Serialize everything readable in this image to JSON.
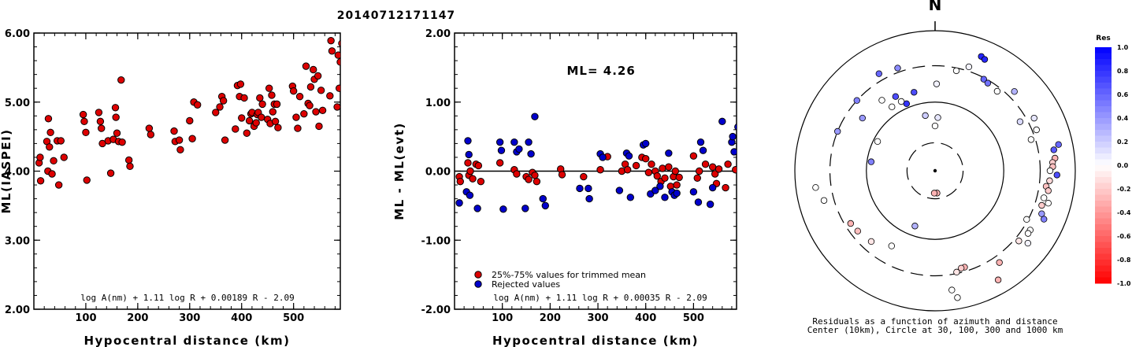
{
  "title": "20140712171147",
  "chart_data": [
    {
      "type": "scatter",
      "ylabel": "ML(IASPEI)",
      "xlabel": "Hypocentral distance (km)",
      "xlim": [
        0,
        590
      ],
      "ylim": [
        2.0,
        6.0
      ],
      "xticks": [
        "100",
        "200",
        "300",
        "400",
        "500"
      ],
      "xtick_values": [
        100,
        200,
        300,
        400,
        500
      ],
      "yticks": [
        "2.00",
        "3.00",
        "4.00",
        "5.00",
        "6.00"
      ],
      "ytick_values": [
        2,
        3,
        4,
        5,
        6
      ],
      "annotation": "log A(nm) + 1.11 log R + 0.00189 R - 2.09",
      "point_color": "#dd0000",
      "points": [
        [
          10,
          4.12
        ],
        [
          12,
          4.2
        ],
        [
          13,
          3.86
        ],
        [
          25,
          4.43
        ],
        [
          27,
          4.0
        ],
        [
          28,
          4.76
        ],
        [
          30,
          4.35
        ],
        [
          32,
          4.56
        ],
        [
          35,
          3.96
        ],
        [
          38,
          4.15
        ],
        [
          45,
          4.44
        ],
        [
          48,
          3.8
        ],
        [
          52,
          4.44
        ],
        [
          58,
          4.2
        ],
        [
          95,
          4.82
        ],
        [
          97,
          4.72
        ],
        [
          100,
          4.56
        ],
        [
          102,
          3.87
        ],
        [
          125,
          4.85
        ],
        [
          128,
          4.72
        ],
        [
          130,
          4.62
        ],
        [
          132,
          4.4
        ],
        [
          143,
          4.44
        ],
        [
          148,
          3.97
        ],
        [
          153,
          4.46
        ],
        [
          157,
          4.92
        ],
        [
          158,
          4.78
        ],
        [
          160,
          4.55
        ],
        [
          163,
          4.43
        ],
        [
          168,
          5.32
        ],
        [
          170,
          4.42
        ],
        [
          183,
          4.16
        ],
        [
          185,
          4.07
        ],
        [
          222,
          4.62
        ],
        [
          225,
          4.53
        ],
        [
          270,
          4.58
        ],
        [
          272,
          4.43
        ],
        [
          280,
          4.45
        ],
        [
          282,
          4.31
        ],
        [
          300,
          4.73
        ],
        [
          305,
          4.47
        ],
        [
          308,
          5.0
        ],
        [
          315,
          4.96
        ],
        [
          350,
          4.85
        ],
        [
          358,
          4.93
        ],
        [
          362,
          5.08
        ],
        [
          365,
          5.02
        ],
        [
          368,
          4.45
        ],
        [
          388,
          4.61
        ],
        [
          392,
          5.24
        ],
        [
          396,
          5.08
        ],
        [
          398,
          5.26
        ],
        [
          400,
          4.77
        ],
        [
          405,
          5.06
        ],
        [
          410,
          4.55
        ],
        [
          415,
          4.73
        ],
        [
          418,
          4.83
        ],
        [
          420,
          4.85
        ],
        [
          424,
          4.65
        ],
        [
          428,
          4.7
        ],
        [
          430,
          4.82
        ],
        [
          432,
          4.85
        ],
        [
          435,
          5.06
        ],
        [
          438,
          4.78
        ],
        [
          440,
          4.97
        ],
        [
          450,
          4.75
        ],
        [
          453,
          5.2
        ],
        [
          455,
          4.69
        ],
        [
          458,
          5.1
        ],
        [
          460,
          4.86
        ],
        [
          463,
          4.97
        ],
        [
          465,
          4.72
        ],
        [
          468,
          4.97
        ],
        [
          470,
          4.63
        ],
        [
          498,
          5.23
        ],
        [
          500,
          5.16
        ],
        [
          505,
          4.78
        ],
        [
          508,
          4.62
        ],
        [
          512,
          5.08
        ],
        [
          520,
          4.83
        ],
        [
          524,
          5.52
        ],
        [
          528,
          4.98
        ],
        [
          531,
          4.95
        ],
        [
          533,
          5.22
        ],
        [
          538,
          5.47
        ],
        [
          540,
          5.33
        ],
        [
          543,
          4.86
        ],
        [
          547,
          5.38
        ],
        [
          549,
          4.65
        ],
        [
          553,
          5.17
        ],
        [
          556,
          4.88
        ],
        [
          570,
          5.09
        ],
        [
          572,
          5.89
        ],
        [
          574,
          5.74
        ],
        [
          584,
          4.93
        ],
        [
          586,
          5.68
        ],
        [
          588,
          5.2
        ],
        [
          590,
          5.58
        ],
        [
          593,
          5.85
        ]
      ]
    },
    {
      "type": "scatter",
      "ylabel": "ML - ML(evt)",
      "xlabel": "Hypocentral distance (km)",
      "xlim": [
        0,
        590
      ],
      "ylim": [
        -2.0,
        2.0
      ],
      "xticks": [
        "100",
        "200",
        "300",
        "400",
        "500"
      ],
      "xtick_values": [
        100,
        200,
        300,
        400,
        500
      ],
      "yticks": [
        "-2.00",
        "-1.00",
        "0.00",
        "1.00",
        "2.00"
      ],
      "ytick_values": [
        -2,
        -1,
        0,
        1,
        2
      ],
      "reference_line": 0.0,
      "ml_label": "ML= 4.26",
      "annotation": "log A(nm) + 1.11 log R + 0.00035 R - 2.09",
      "legend": [
        {
          "label": "25%-75% values for trimmed mean",
          "color": "#dd0000"
        },
        {
          "label": "Rejected values",
          "color": "#0000cc"
        }
      ],
      "series": [
        {
          "name": "25%-75% values for trimmed mean",
          "color": "#dd0000",
          "points": [
            [
              10,
              -0.08
            ],
            [
              12,
              -0.15
            ],
            [
              28,
              0.12
            ],
            [
              30,
              -0.06
            ],
            [
              33,
              0.0
            ],
            [
              38,
              -0.11
            ],
            [
              45,
              0.1
            ],
            [
              50,
              0.08
            ],
            [
              55,
              -0.15
            ],
            [
              95,
              0.12
            ],
            [
              125,
              0.02
            ],
            [
              130,
              -0.04
            ],
            [
              150,
              -0.08
            ],
            [
              155,
              -0.12
            ],
            [
              163,
              -0.02
            ],
            [
              168,
              -0.06
            ],
            [
              172,
              -0.15
            ],
            [
              222,
              0.03
            ],
            [
              225,
              -0.05
            ],
            [
              270,
              -0.08
            ],
            [
              305,
              0.02
            ],
            [
              320,
              0.21
            ],
            [
              350,
              0.0
            ],
            [
              357,
              0.1
            ],
            [
              362,
              0.02
            ],
            [
              380,
              0.08
            ],
            [
              392,
              0.2
            ],
            [
              400,
              0.18
            ],
            [
              406,
              -0.02
            ],
            [
              412,
              0.1
            ],
            [
              420,
              0.0
            ],
            [
              424,
              -0.07
            ],
            [
              432,
              -0.15
            ],
            [
              435,
              0.04
            ],
            [
              440,
              -0.1
            ],
            [
              448,
              0.06
            ],
            [
              452,
              -0.22
            ],
            [
              458,
              -0.08
            ],
            [
              462,
              0.0
            ],
            [
              465,
              -0.2
            ],
            [
              470,
              -0.09
            ],
            [
              500,
              0.22
            ],
            [
              508,
              -0.1
            ],
            [
              512,
              0.0
            ],
            [
              525,
              0.1
            ],
            [
              540,
              0.06
            ],
            [
              545,
              -0.04
            ],
            [
              548,
              -0.18
            ],
            [
              553,
              0.03
            ],
            [
              567,
              -0.24
            ],
            [
              572,
              0.1
            ],
            [
              588,
              0.02
            ]
          ]
        },
        {
          "name": "Rejected values",
          "color": "#0000cc",
          "points": [
            [
              10,
              -0.46
            ],
            [
              25,
              -0.3
            ],
            [
              28,
              0.44
            ],
            [
              30,
              0.24
            ],
            [
              32,
              -0.35
            ],
            [
              48,
              -0.54
            ],
            [
              95,
              0.42
            ],
            [
              98,
              0.3
            ],
            [
              102,
              -0.55
            ],
            [
              125,
              0.42
            ],
            [
              130,
              0.28
            ],
            [
              135,
              0.32
            ],
            [
              148,
              -0.54
            ],
            [
              155,
              0.42
            ],
            [
              160,
              0.25
            ],
            [
              168,
              0.79
            ],
            [
              185,
              -0.4
            ],
            [
              190,
              -0.5
            ],
            [
              262,
              -0.25
            ],
            [
              280,
              -0.25
            ],
            [
              282,
              -0.4
            ],
            [
              305,
              0.25
            ],
            [
              310,
              0.2
            ],
            [
              345,
              -0.28
            ],
            [
              360,
              0.26
            ],
            [
              365,
              0.22
            ],
            [
              368,
              -0.38
            ],
            [
              395,
              0.38
            ],
            [
              400,
              0.4
            ],
            [
              410,
              -0.33
            ],
            [
              420,
              -0.28
            ],
            [
              430,
              -0.22
            ],
            [
              440,
              -0.38
            ],
            [
              448,
              0.26
            ],
            [
              455,
              -0.3
            ],
            [
              460,
              -0.35
            ],
            [
              465,
              -0.32
            ],
            [
              500,
              -0.3
            ],
            [
              510,
              -0.45
            ],
            [
              515,
              0.42
            ],
            [
              520,
              0.3
            ],
            [
              535,
              -0.48
            ],
            [
              540,
              -0.24
            ],
            [
              560,
              0.72
            ],
            [
              580,
              0.42
            ],
            [
              582,
              0.5
            ],
            [
              585,
              0.28
            ],
            [
              593,
              0.64
            ]
          ]
        }
      ]
    },
    {
      "type": "polar-scatter",
      "north_label": "N",
      "caption_lines": [
        "Residuals as a function of azimuth and distance",
        "Center (10km), Circle at 30, 100, 300 and 1000 km"
      ],
      "rings": [
        {
          "label": "30 km",
          "style": "dashed"
        },
        {
          "label": "100 km",
          "style": "solid"
        },
        {
          "label": "300 km",
          "style": "dashed"
        },
        {
          "label": "1000 km",
          "style": "solid"
        }
      ],
      "colorbar": {
        "title": "Res",
        "range": [
          -1.0,
          1.0
        ],
        "ticks": [
          "1.0",
          "0.8",
          "0.6",
          "0.4",
          "0.2",
          "0.0",
          "-0.2",
          "-0.4",
          "-0.6",
          "-0.8",
          "-1.0"
        ],
        "tick_values": [
          1.0,
          0.8,
          0.6,
          0.4,
          0.2,
          0.0,
          -0.2,
          -0.4,
          -0.6,
          -0.8,
          -1.0
        ],
        "positive_color": "#0000ff",
        "negative_color": "#ff0000"
      },
      "points": [
        [
          1,
          0.62,
          0.05
        ],
        [
          3,
          0.38,
          0.1
        ],
        [
          12,
          0.73,
          0.0
        ],
        [
          18,
          0.78,
          0.05
        ],
        [
          22,
          0.88,
          0.85
        ],
        [
          24,
          0.87,
          0.85
        ],
        [
          28,
          0.74,
          0.6
        ],
        [
          31,
          0.73,
          0.55
        ],
        [
          38,
          0.72,
          0.0
        ],
        [
          45,
          0.8,
          0.3
        ],
        [
          60,
          0.7,
          0.15
        ],
        [
          62,
          0.8,
          0.1
        ],
        [
          68,
          0.78,
          0.0
        ],
        [
          72,
          0.72,
          0.0
        ],
        [
          78,
          0.9,
          0.6
        ],
        [
          80,
          0.86,
          0.65
        ],
        [
          84,
          0.86,
          -0.3
        ],
        [
          86,
          0.84,
          -0.2
        ],
        [
          88,
          0.84,
          -0.25
        ],
        [
          90,
          0.82,
          0.0
        ],
        [
          92,
          0.87,
          0.7
        ],
        [
          95,
          0.82,
          -0.15
        ],
        [
          98,
          0.8,
          -0.25
        ],
        [
          100,
          0.82,
          -0.2
        ],
        [
          104,
          0.8,
          0.0
        ],
        [
          106,
          0.84,
          0.0
        ],
        [
          108,
          0.8,
          -0.2
        ],
        [
          112,
          0.82,
          0.4
        ],
        [
          114,
          0.85,
          0.5
        ],
        [
          122,
          0.8,
          0.0
        ],
        [
          124,
          0.8,
          0.0
        ],
        [
          128,
          0.84,
          0.05
        ],
        [
          145,
          0.8,
          -0.3
        ],
        [
          150,
          0.9,
          -0.3
        ],
        [
          163,
          0.72,
          -0.3
        ],
        [
          165,
          0.72,
          -0.2
        ],
        [
          168,
          0.74,
          -0.1
        ],
        [
          170,
          0.92,
          0.0
        ],
        [
          172,
          0.86,
          0.0
        ],
        [
          175,
          0.16,
          -0.3
        ],
        [
          182,
          0.16,
          -0.3
        ],
        [
          200,
          0.42,
          0.3
        ],
        [
          210,
          0.62,
          0.0
        ],
        [
          222,
          0.68,
          -0.1
        ],
        [
          232,
          0.7,
          -0.25
        ],
        [
          238,
          0.71,
          -0.3
        ],
        [
          255,
          0.82,
          0.0
        ],
        [
          262,
          0.86,
          0.0
        ],
        [
          278,
          0.46,
          0.5
        ],
        [
          292,
          0.75,
          0.4
        ],
        [
          297,
          0.46,
          0.0
        ],
        [
          306,
          0.64,
          0.4
        ],
        [
          312,
          0.75,
          0.5
        ],
        [
          323,
          0.63,
          0.0
        ],
        [
          326,
          0.55,
          0.0
        ],
        [
          330,
          0.8,
          0.6
        ],
        [
          332,
          0.6,
          0.7
        ],
        [
          334,
          0.55,
          0.0
        ],
        [
          337,
          0.52,
          0.8
        ],
        [
          340,
          0.78,
          0.45
        ],
        [
          345,
          0.58,
          0.7
        ],
        [
          360,
          0.32,
          0.0
        ],
        [
          350,
          0.4,
          0.2
        ],
        [
          130,
          0.78,
          -0.1
        ],
        [
          118,
          0.74,
          0.0
        ]
      ]
    }
  ]
}
